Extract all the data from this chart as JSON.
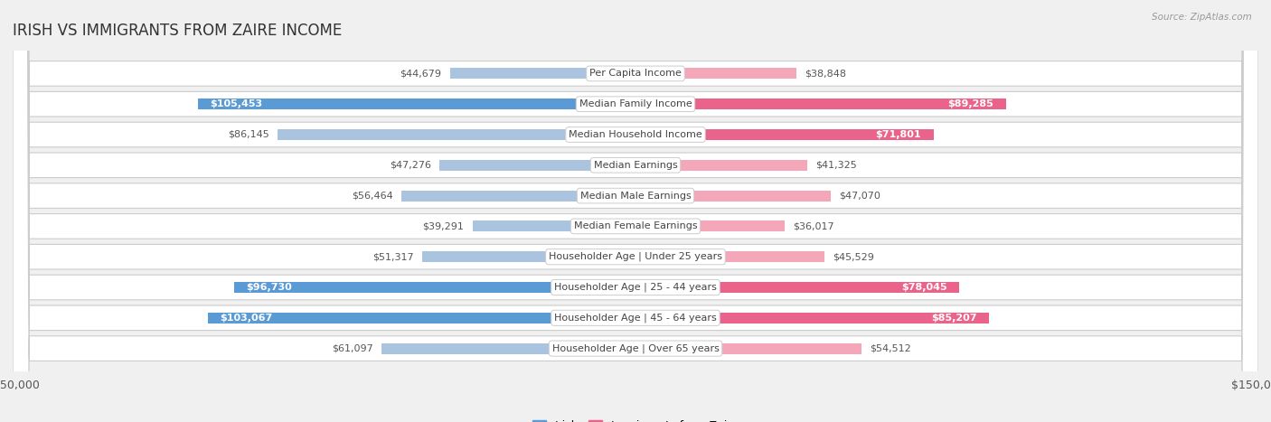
{
  "title": "IRISH VS IMMIGRANTS FROM ZAIRE INCOME",
  "source": "Source: ZipAtlas.com",
  "categories": [
    "Per Capita Income",
    "Median Family Income",
    "Median Household Income",
    "Median Earnings",
    "Median Male Earnings",
    "Median Female Earnings",
    "Householder Age | Under 25 years",
    "Householder Age | 25 - 44 years",
    "Householder Age | 45 - 64 years",
    "Householder Age | Over 65 years"
  ],
  "irish_values": [
    44679,
    105453,
    86145,
    47276,
    56464,
    39291,
    51317,
    96730,
    103067,
    61097
  ],
  "zaire_values": [
    38848,
    89285,
    71801,
    41325,
    47070,
    36017,
    45529,
    78045,
    85207,
    54512
  ],
  "irish_labels": [
    "$44,679",
    "$105,453",
    "$86,145",
    "$47,276",
    "$56,464",
    "$39,291",
    "$51,317",
    "$96,730",
    "$103,067",
    "$61,097"
  ],
  "zaire_labels": [
    "$38,848",
    "$89,285",
    "$71,801",
    "$41,325",
    "$47,070",
    "$36,017",
    "$45,529",
    "$78,045",
    "$85,207",
    "$54,512"
  ],
  "irish_color_light": "#aac4e0",
  "irish_color_dark": "#5b9bd5",
  "zaire_color_light": "#f4a7b9",
  "zaire_color_dark": "#e9638a",
  "irish_dark_flags": [
    false,
    true,
    false,
    false,
    false,
    false,
    false,
    true,
    true,
    false
  ],
  "zaire_dark_flags": [
    false,
    true,
    true,
    false,
    false,
    false,
    false,
    true,
    true,
    false
  ],
  "max_value": 150000,
  "legend_irish": "Irish",
  "legend_zaire": "Immigrants from Zaire",
  "bg_color": "#f0f0f0",
  "title_fontsize": 12,
  "label_fontsize": 8,
  "category_fontsize": 8,
  "axis_label_fontsize": 9
}
